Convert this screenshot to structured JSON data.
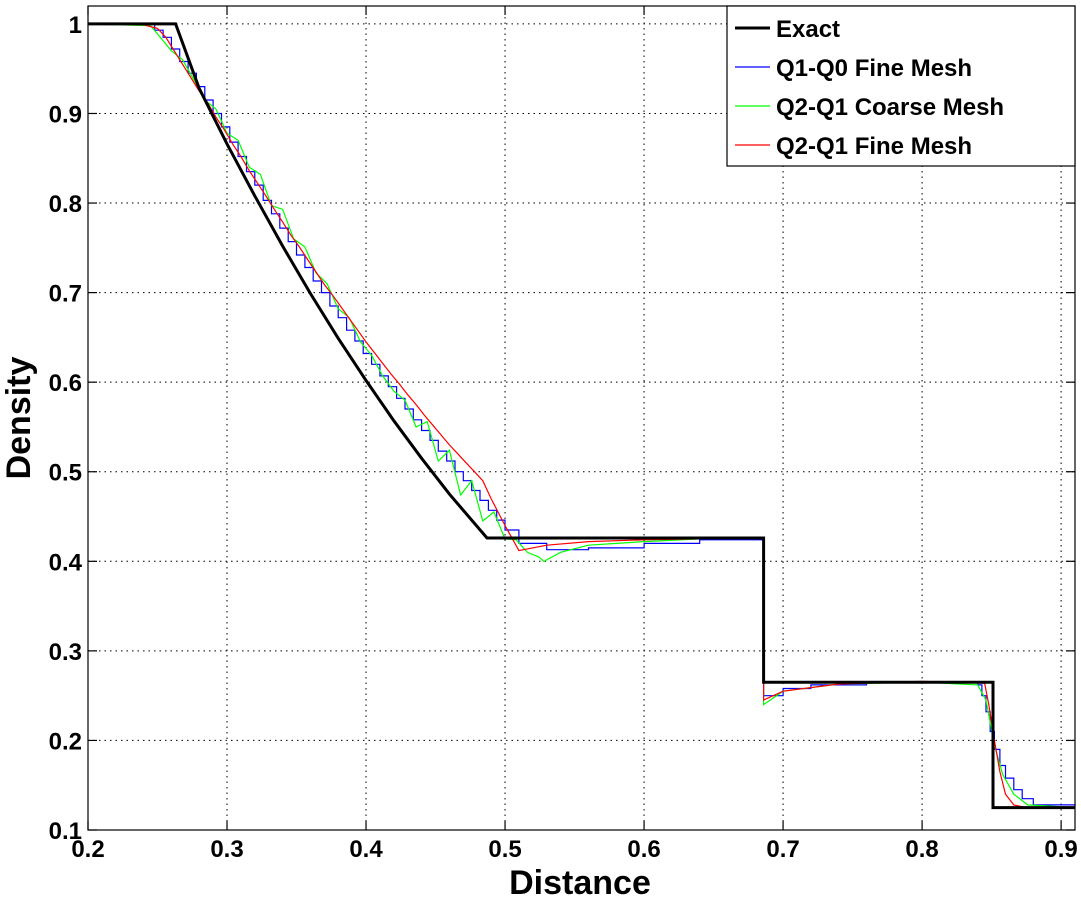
{
  "chart_data": {
    "type": "line",
    "title": "",
    "xlabel": "Distance",
    "ylabel": "Density",
    "xlim": [
      0.2,
      0.91
    ],
    "ylim": [
      0.1,
      1.02
    ],
    "xticks": [
      0.2,
      0.3,
      0.4,
      0.5,
      0.6,
      0.7,
      0.8,
      0.9
    ],
    "yticks": [
      0.1,
      0.2,
      0.3,
      0.4,
      0.5,
      0.6,
      0.7,
      0.8,
      0.9,
      1.0
    ],
    "xtick_labels": [
      "0.2",
      "0.3",
      "0.4",
      "0.5",
      "0.6",
      "0.7",
      "0.8",
      "0.9"
    ],
    "ytick_labels": [
      "0.1",
      "0.2",
      "0.3",
      "0.4",
      "0.5",
      "0.6",
      "0.7",
      "0.8",
      "0.9",
      "1"
    ],
    "grid": true,
    "legend_position": "top-right",
    "series": [
      {
        "name": "Exact",
        "color": "#000000",
        "width": 3,
        "step": false,
        "x": [
          0.2,
          0.263,
          0.28,
          0.3,
          0.32,
          0.34,
          0.36,
          0.38,
          0.4,
          0.42,
          0.44,
          0.46,
          0.487,
          0.686,
          0.686,
          0.851,
          0.851,
          0.91
        ],
        "y": [
          1.0,
          1.0,
          0.928,
          0.866,
          0.808,
          0.752,
          0.699,
          0.649,
          0.602,
          0.557,
          0.515,
          0.475,
          0.426,
          0.426,
          0.265,
          0.265,
          0.125,
          0.125
        ]
      },
      {
        "name": "Q1-Q0 Fine Mesh",
        "color": "#0000ff",
        "width": 1.2,
        "step": true,
        "x": [
          0.2,
          0.248,
          0.254,
          0.26,
          0.266,
          0.272,
          0.278,
          0.284,
          0.29,
          0.296,
          0.302,
          0.308,
          0.314,
          0.32,
          0.326,
          0.332,
          0.338,
          0.344,
          0.35,
          0.356,
          0.362,
          0.368,
          0.374,
          0.38,
          0.386,
          0.392,
          0.398,
          0.404,
          0.41,
          0.416,
          0.422,
          0.428,
          0.434,
          0.44,
          0.446,
          0.452,
          0.458,
          0.464,
          0.47,
          0.476,
          0.482,
          0.488,
          0.494,
          0.5,
          0.51,
          0.53,
          0.56,
          0.6,
          0.64,
          0.686,
          0.686,
          0.7,
          0.72,
          0.76,
          0.8,
          0.84,
          0.843,
          0.846,
          0.849,
          0.852,
          0.856,
          0.86,
          0.866,
          0.872,
          0.88,
          0.91
        ],
        "y": [
          1.0,
          0.993,
          0.985,
          0.972,
          0.958,
          0.945,
          0.93,
          0.915,
          0.9,
          0.885,
          0.868,
          0.852,
          0.835,
          0.82,
          0.803,
          0.788,
          0.772,
          0.757,
          0.742,
          0.728,
          0.713,
          0.7,
          0.685,
          0.672,
          0.658,
          0.646,
          0.632,
          0.62,
          0.607,
          0.595,
          0.582,
          0.57,
          0.558,
          0.546,
          0.535,
          0.523,
          0.512,
          0.5,
          0.49,
          0.479,
          0.468,
          0.457,
          0.446,
          0.435,
          0.42,
          0.413,
          0.415,
          0.42,
          0.424,
          0.424,
          0.25,
          0.258,
          0.262,
          0.265,
          0.265,
          0.262,
          0.25,
          0.232,
          0.21,
          0.19,
          0.172,
          0.158,
          0.145,
          0.135,
          0.128,
          0.126
        ]
      },
      {
        "name": "Q2-Q1 Coarse Mesh",
        "color": "#00ff00",
        "width": 1.2,
        "step": false,
        "x": [
          0.2,
          0.245,
          0.252,
          0.26,
          0.268,
          0.276,
          0.284,
          0.292,
          0.3,
          0.308,
          0.316,
          0.324,
          0.332,
          0.34,
          0.348,
          0.356,
          0.364,
          0.372,
          0.38,
          0.388,
          0.396,
          0.404,
          0.412,
          0.42,
          0.428,
          0.436,
          0.444,
          0.452,
          0.46,
          0.468,
          0.476,
          0.484,
          0.492,
          0.5,
          0.508,
          0.516,
          0.524,
          0.528,
          0.54,
          0.56,
          0.6,
          0.64,
          0.686,
          0.686,
          0.7,
          0.74,
          0.8,
          0.84,
          0.846,
          0.852,
          0.858,
          0.866,
          0.876,
          0.91
        ],
        "y": [
          1.0,
          0.998,
          0.985,
          0.97,
          0.96,
          0.938,
          0.915,
          0.905,
          0.878,
          0.87,
          0.84,
          0.832,
          0.797,
          0.793,
          0.76,
          0.751,
          0.722,
          0.71,
          0.682,
          0.672,
          0.645,
          0.63,
          0.607,
          0.59,
          0.58,
          0.55,
          0.556,
          0.512,
          0.524,
          0.474,
          0.49,
          0.445,
          0.455,
          0.425,
          0.424,
          0.41,
          0.405,
          0.4,
          0.41,
          0.418,
          0.422,
          0.425,
          0.425,
          0.24,
          0.255,
          0.263,
          0.265,
          0.262,
          0.245,
          0.195,
          0.162,
          0.14,
          0.128,
          0.125
        ]
      },
      {
        "name": "Q2-Q1 Fine Mesh",
        "color": "#ff0000",
        "width": 1.2,
        "step": false,
        "x": [
          0.2,
          0.24,
          0.25,
          0.256,
          0.262,
          0.268,
          0.274,
          0.28,
          0.286,
          0.292,
          0.298,
          0.304,
          0.31,
          0.316,
          0.322,
          0.328,
          0.334,
          0.34,
          0.346,
          0.352,
          0.358,
          0.364,
          0.37,
          0.376,
          0.382,
          0.388,
          0.394,
          0.4,
          0.406,
          0.412,
          0.418,
          0.424,
          0.43,
          0.436,
          0.442,
          0.448,
          0.454,
          0.46,
          0.466,
          0.472,
          0.478,
          0.484,
          0.49,
          0.5,
          0.51,
          0.53,
          0.56,
          0.6,
          0.64,
          0.686,
          0.686,
          0.7,
          0.74,
          0.8,
          0.845,
          0.848,
          0.852,
          0.856,
          0.86,
          0.866,
          0.875,
          0.91
        ],
        "y": [
          1.0,
          0.999,
          0.995,
          0.985,
          0.97,
          0.955,
          0.94,
          0.925,
          0.912,
          0.896,
          0.882,
          0.866,
          0.852,
          0.836,
          0.822,
          0.808,
          0.793,
          0.779,
          0.764,
          0.751,
          0.737,
          0.723,
          0.709,
          0.697,
          0.684,
          0.671,
          0.658,
          0.645,
          0.633,
          0.621,
          0.609,
          0.598,
          0.586,
          0.575,
          0.563,
          0.552,
          0.541,
          0.53,
          0.52,
          0.51,
          0.5,
          0.49,
          0.47,
          0.44,
          0.412,
          0.418,
          0.422,
          0.424,
          0.425,
          0.425,
          0.245,
          0.255,
          0.263,
          0.266,
          0.264,
          0.24,
          0.2,
          0.165,
          0.14,
          0.128,
          0.125,
          0.125
        ]
      }
    ]
  }
}
